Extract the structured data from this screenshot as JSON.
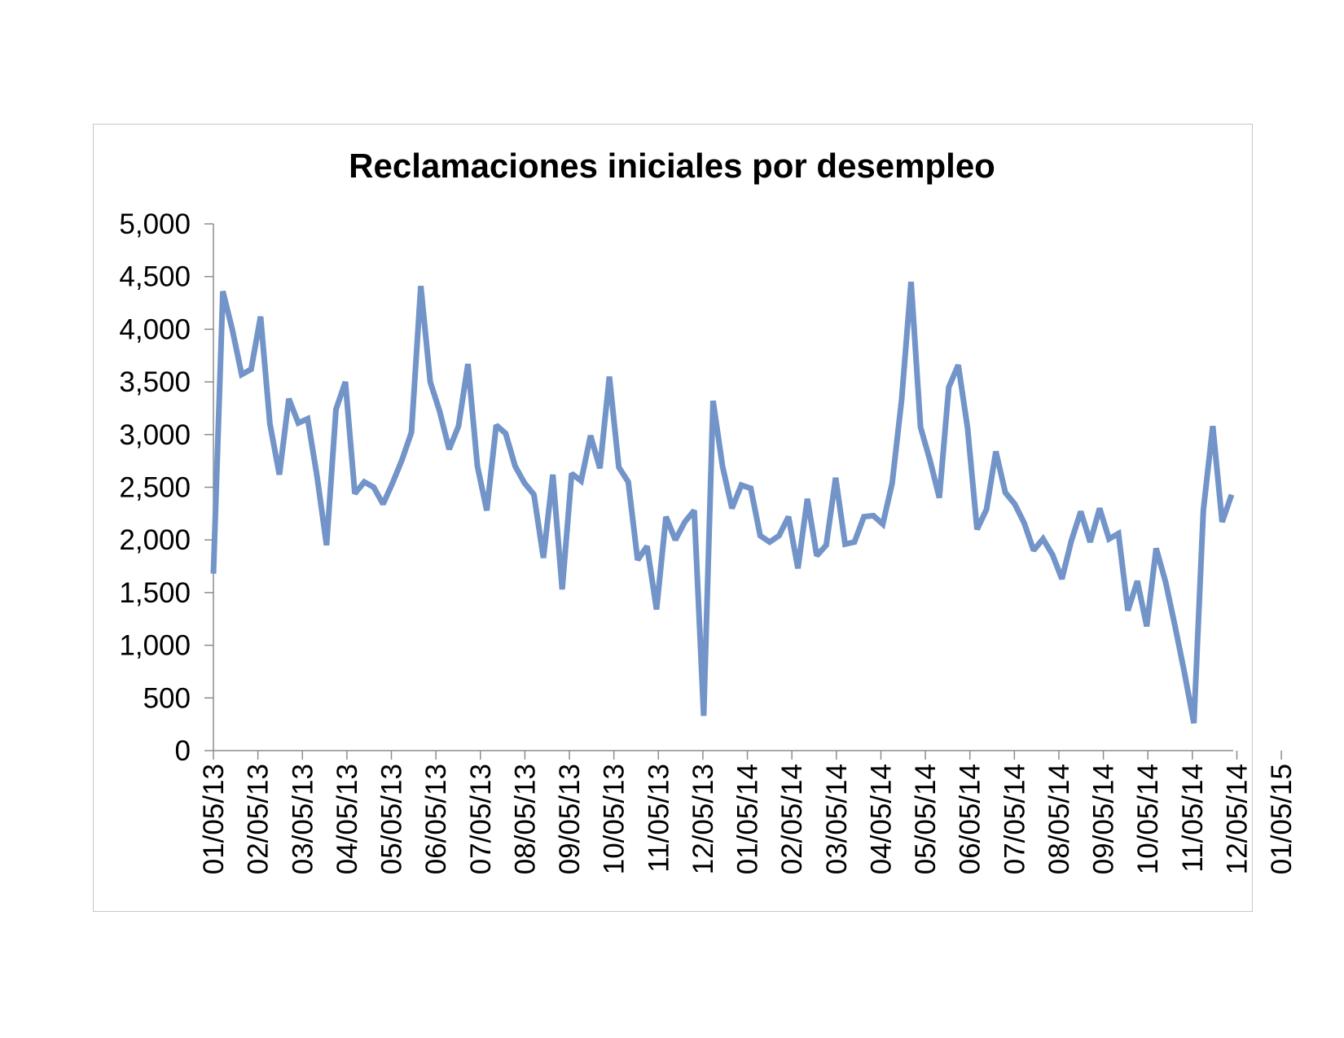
{
  "chart_data": {
    "type": "line",
    "title": "Reclamaciones iniciales por desempleo",
    "xlabel": "",
    "ylabel": "",
    "ylim": [
      0,
      5000
    ],
    "y_ticks": [
      "0",
      "500",
      "1,000",
      "1,500",
      "2,000",
      "2,500",
      "3,000",
      "3,500",
      "4,000",
      "4,500",
      "5,000"
    ],
    "x_tick_labels": [
      "01/05/13",
      "02/05/13",
      "03/05/13",
      "04/05/13",
      "05/05/13",
      "06/05/13",
      "07/05/13",
      "08/05/13",
      "09/05/13",
      "10/05/13",
      "11/05/13",
      "12/05/13",
      "01/05/14",
      "02/05/14",
      "03/05/14",
      "04/05/14",
      "05/05/14",
      "06/05/14",
      "07/05/14",
      "08/05/14",
      "09/05/14",
      "10/05/14",
      "11/05/14",
      "12/05/14",
      "01/05/15"
    ],
    "grid": false,
    "line_color": "#7294c8",
    "series": [
      {
        "values": [
          1680,
          4360,
          4000,
          3570,
          3620,
          4120,
          3100,
          2620,
          3340,
          3110,
          3150,
          2600,
          1950,
          3240,
          3500,
          2440,
          2550,
          2500,
          2340,
          2540,
          2760,
          3020,
          4410,
          3500,
          3220,
          2860,
          3080,
          3670,
          2700,
          2280,
          3090,
          3010,
          2700,
          2540,
          2430,
          1830,
          2620,
          1530,
          2630,
          2560,
          2990,
          2680,
          3550,
          2690,
          2550,
          1810,
          1940,
          1340,
          2220,
          2000,
          2170,
          2280,
          330,
          3320,
          2700,
          2300,
          2520,
          2490,
          2040,
          1980,
          2040,
          2220,
          1730,
          2390,
          1850,
          1950,
          2590,
          1960,
          1980,
          2220,
          2230,
          2150,
          2540,
          3330,
          4450,
          3070,
          2760,
          2400,
          3450,
          3660,
          3060,
          2100,
          2290,
          2840,
          2450,
          2340,
          2160,
          1900,
          2010,
          1860,
          1630,
          1990,
          2270,
          1980,
          2300,
          2010,
          2060,
          1330,
          1610,
          1180,
          1920,
          1600,
          1180,
          740,
          260,
          2280,
          3080,
          2170,
          2430
        ]
      }
    ]
  }
}
